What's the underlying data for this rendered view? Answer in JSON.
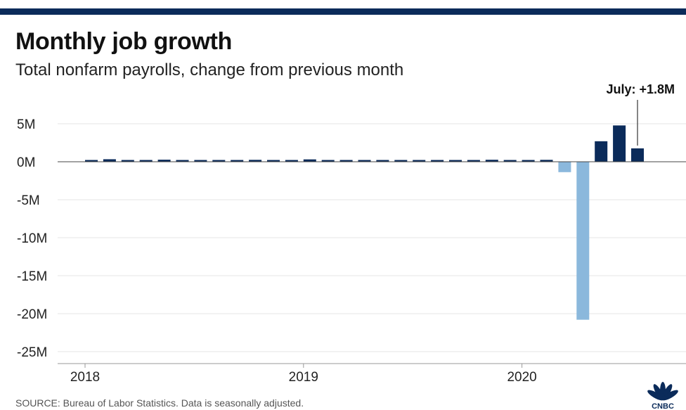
{
  "header": {
    "title": "Monthly job growth",
    "subtitle": "Total nonfarm payrolls, change from previous month"
  },
  "footer": {
    "source": "SOURCE: Bureau of Labor Statistics. Data is seasonally adjusted."
  },
  "logo": {
    "icon": "cnbc-peacock-icon",
    "text": "CNBC"
  },
  "colors": {
    "positive": "#0b2b5a",
    "negative": "#8bb8dc",
    "topbar": "#0b2b5a",
    "grid": "#e6e6e6"
  },
  "chart_data": {
    "type": "bar",
    "title": "Monthly job growth",
    "subtitle": "Total nonfarm payrolls, change from previous month",
    "xlabel": "",
    "ylabel": "",
    "ylim": [
      -25,
      5
    ],
    "yticks": [
      5,
      0,
      -5,
      -10,
      -15,
      -20,
      -25
    ],
    "ytick_labels": [
      "5M",
      "0M",
      "-5M",
      "-10M",
      "-15M",
      "-20M",
      "-25M"
    ],
    "xticks": [
      {
        "index": 0,
        "label": "2018"
      },
      {
        "index": 12,
        "label": "2019"
      },
      {
        "index": 24,
        "label": "2020"
      }
    ],
    "units": "millions of jobs",
    "grid": true,
    "categories": [
      "2018-01",
      "2018-02",
      "2018-03",
      "2018-04",
      "2018-05",
      "2018-06",
      "2018-07",
      "2018-08",
      "2018-09",
      "2018-10",
      "2018-11",
      "2018-12",
      "2019-01",
      "2019-02",
      "2019-03",
      "2019-04",
      "2019-05",
      "2019-06",
      "2019-07",
      "2019-08",
      "2019-09",
      "2019-10",
      "2019-11",
      "2019-12",
      "2020-01",
      "2020-02",
      "2020-03",
      "2020-04",
      "2020-05",
      "2020-06",
      "2020-07"
    ],
    "values": [
      0.18,
      0.33,
      0.18,
      0.16,
      0.27,
      0.22,
      0.15,
      0.21,
      0.12,
      0.25,
      0.17,
      0.23,
      0.31,
      0.01,
      0.15,
      0.22,
      0.08,
      0.18,
      0.17,
      0.2,
      0.18,
      0.19,
      0.26,
      0.18,
      0.21,
      0.25,
      -1.37,
      -20.8,
      2.7,
      4.78,
      1.76
    ],
    "annotation": {
      "index": 30,
      "label": "July: +1.8M"
    }
  }
}
